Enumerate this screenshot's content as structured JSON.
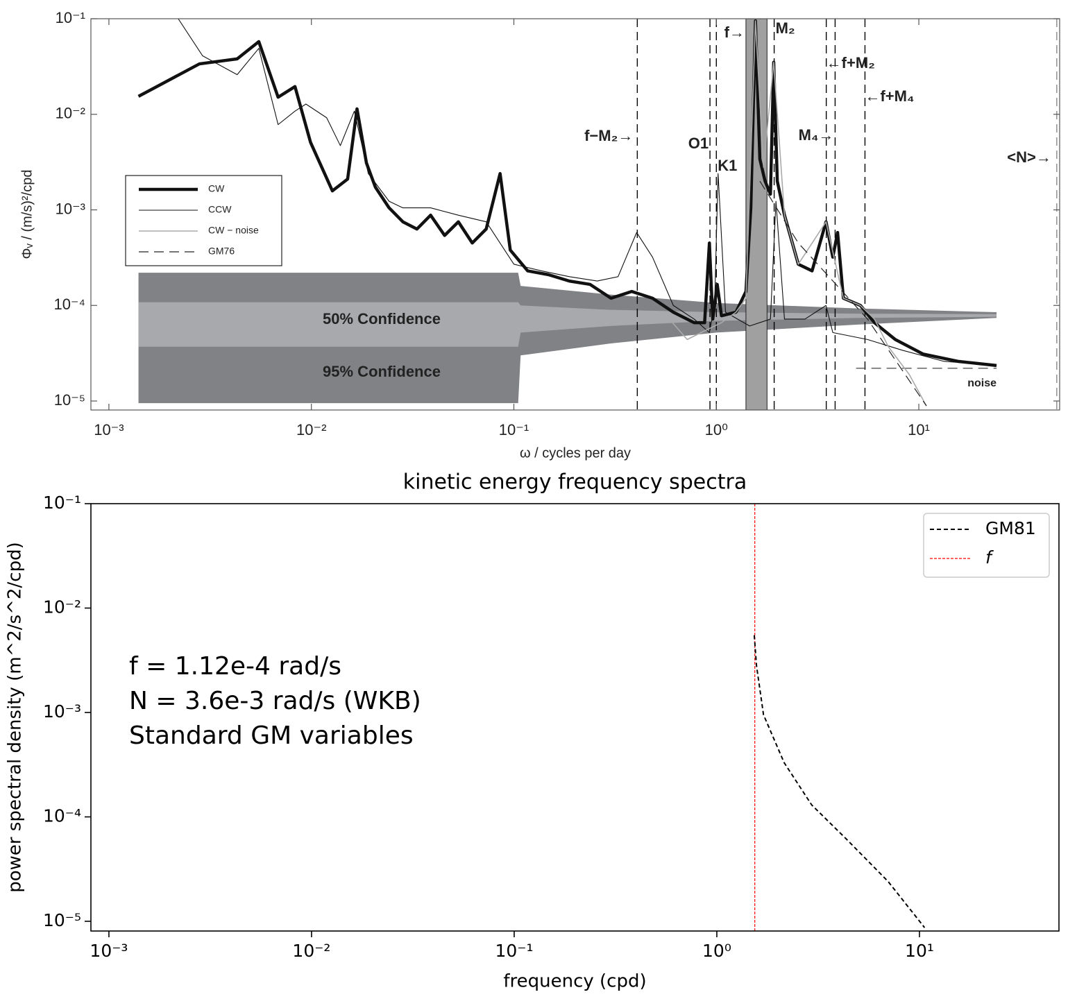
{
  "chart_data": [
    {
      "type": "line",
      "log_x": true,
      "log_y": true,
      "xlabel": "ω / cycles per day",
      "ylabel": "Φᵥ / (m/s)²/cpd",
      "xlim": [
        0.000815,
        49.6
      ],
      "ylim": [
        8.05e-06,
        0.1
      ],
      "xticks": [
        {
          "value": 0.001,
          "label": "10⁻³"
        },
        {
          "value": 0.01,
          "label": "10⁻²"
        },
        {
          "value": 0.1,
          "label": "10⁻¹"
        },
        {
          "value": 1,
          "label": "10⁰"
        },
        {
          "value": 10,
          "label": "10¹"
        }
      ],
      "yticks": [
        {
          "value": 1e-05,
          "label": "10⁻⁵"
        },
        {
          "value": 0.0001,
          "label": "10⁻⁴"
        },
        {
          "value": 0.001,
          "label": "10⁻³"
        },
        {
          "value": 0.01,
          "label": "10⁻²"
        },
        {
          "value": 0.1,
          "label": "10⁻¹"
        }
      ],
      "bands": [
        {
          "name": "95% Confidence",
          "color": "#808285",
          "x": [
            0.0014,
            0.105,
            0.108,
            0.3,
            1,
            5,
            24.2
          ],
          "lower": [
            9.5e-06,
            9.5e-06,
            3e-05,
            4e-05,
            5.2e-05,
            6.3e-05,
            7.4e-05
          ],
          "upper": [
            0.00022,
            0.00022,
            0.00016,
            0.00013,
            0.000106,
            9.3e-05,
            8.5e-05
          ]
        },
        {
          "name": "50% Confidence",
          "color": "#a7a9ac",
          "x": [
            0.0014,
            0.105,
            0.108,
            0.3,
            1,
            5,
            24.2
          ],
          "lower": [
            3.7e-05,
            3.7e-05,
            5.2e-05,
            6.1e-05,
            6.9e-05,
            7.4e-05,
            7.6e-05
          ],
          "upper": [
            0.000108,
            0.000108,
            0.0001,
            9e-05,
            8.5e-05,
            8.2e-05,
            8.1e-05
          ]
        }
      ],
      "shaded": {
        "label": "f→",
        "xlim": [
          1.4,
          1.78
        ],
        "color": "#a0a0a0"
      },
      "vlines": [
        {
          "label": "f−M₂→",
          "x": 0.407,
          "color": "#000000"
        },
        {
          "label": "O1",
          "x": 0.93,
          "color": "#000000"
        },
        {
          "label": "K1",
          "x": 1.0,
          "color": "#000000"
        },
        {
          "label": "M₂",
          "x": 1.93,
          "color": "#000000"
        },
        {
          "label": "←f+M₂",
          "x": 3.49,
          "color": "#000000"
        },
        {
          "label": "M₄→",
          "x": 3.86,
          "color": "#000000"
        },
        {
          "label": "←f+M₄",
          "x": 5.42,
          "color": "#000000"
        },
        {
          "label": "<N>→",
          "x": 48,
          "color": "#888888"
        }
      ],
      "noise": {
        "label": "noise",
        "x": [
          4.9,
          24.2
        ],
        "value": 2.2e-05,
        "color": "#555555"
      },
      "series": [
        {
          "name": "CW",
          "color": "#111111",
          "line_width": 4.5,
          "dash": "none",
          "x": [
            0.0014,
            0.0028,
            0.0043,
            0.0055,
            0.00685,
            0.0083,
            0.0099,
            0.0127,
            0.0151,
            0.0168,
            0.0187,
            0.0207,
            0.0242,
            0.0283,
            0.0332,
            0.0388,
            0.0455,
            0.0532,
            0.0623,
            0.073,
            0.0855,
            0.096,
            0.117,
            0.148,
            0.188,
            0.238,
            0.302,
            0.382,
            0.484,
            0.613,
            0.777,
            0.875,
            0.924,
            0.96,
            1.01,
            1.06,
            1.25,
            1.4,
            1.48,
            1.56,
            1.64,
            1.74,
            1.85,
            1.92,
            2.0,
            2.17,
            2.54,
            2.97,
            3.48,
            3.76,
            3.97,
            4.24,
            5.15,
            6.04,
            7.65,
            10.5,
            15.6,
            24.2
          ],
          "values": [
            0.0154,
            0.0337,
            0.038,
            0.0576,
            0.0151,
            0.0195,
            0.0051,
            0.00158,
            0.0021,
            0.0114,
            0.0031,
            0.00173,
            0.00105,
            0.00075,
            0.00063,
            0.00088,
            0.00054,
            0.00075,
            0.00045,
            0.00063,
            0.0024,
            0.00038,
            0.00023,
            0.00021,
            0.00018,
            0.000166,
            0.000119,
            0.00014,
            0.000119,
            8.5e-05,
            6.6e-05,
            6.6e-05,
            0.00045,
            7.2e-05,
            0.000166,
            7.8e-05,
            8.5e-05,
            0.00014,
            0.00105,
            0.095,
            0.0034,
            0.002,
            0.00146,
            0.035,
            0.002,
            0.00088,
            0.00027,
            0.00023,
            0.00075,
            0.00032,
            0.00058,
            0.000119,
            0.0001,
            6.6e-05,
            4.4e-05,
            3.1e-05,
            2.6e-05,
            2.35e-05
          ]
        },
        {
          "name": "CCW",
          "color": "#111111",
          "line_width": 1.1,
          "dash": "none",
          "x": [
            0.0022,
            0.0029,
            0.0043,
            0.0055,
            0.00685,
            0.0083,
            0.0094,
            0.0119,
            0.0139,
            0.0163,
            0.0191,
            0.0242,
            0.0283,
            0.0388,
            0.0532,
            0.073,
            0.1,
            0.137,
            0.188,
            0.258,
            0.327,
            0.404,
            0.484,
            0.613,
            0.777,
            0.924,
            0.98,
            1.02,
            1.11,
            1.46,
            1.85,
            1.97,
            2.17,
            2.74,
            3.48,
            3.76,
            5.58,
            8.28,
            13.3,
            24.2
          ],
          "values": [
            0.1,
            0.041,
            0.026,
            0.049,
            0.0078,
            0.0108,
            0.0128,
            0.0092,
            0.0047,
            0.0108,
            0.0024,
            0.00123,
            0.00105,
            0.00105,
            0.00088,
            0.00075,
            0.00027,
            0.00023,
            0.0002,
            0.00018,
            0.0002,
            0.00058,
            0.00032,
            0.0001,
            7.2e-05,
            5.2e-05,
            0.0001,
            0.0024,
            8.5e-05,
            6.1e-05,
            7.2e-05,
            0.00123,
            7.2e-05,
            7.2e-05,
            0.0001,
            5.2e-05,
            4.4e-05,
            3.4e-05,
            2.6e-05,
            2.35e-05
          ]
        },
        {
          "name": "CW − noise",
          "color": "#aaaaaa",
          "line_width": 1.6,
          "dash": "none",
          "x": [
            0.567,
            0.718,
            0.84,
            1.06,
            1.25,
            1.4,
            1.56,
            1.71,
            1.92,
            2.17,
            2.54,
            3.48,
            4.24,
            5.15,
            6.04,
            7.07,
            8.96,
            10.9
          ],
          "values": [
            7.8e-05,
            4.4e-05,
            5.2e-05,
            6.6e-05,
            8.5e-05,
            0.000119,
            0.095,
            0.0028,
            0.035,
            0.00088,
            0.00027,
            0.00075,
            0.000119,
            0.0001,
            7.2e-05,
            3.7e-05,
            1.9e-05,
            8.9e-06
          ]
        },
        {
          "name": "GM76",
          "color": "#222222",
          "line_width": 1.2,
          "dash": "14 8",
          "x": [
            1.64,
            2.54,
            5.58,
            10.9
          ],
          "values": [
            0.002,
            0.00045,
            7.2e-05,
            8.9e-06
          ]
        }
      ]
    },
    {
      "type": "line",
      "log_x": true,
      "log_y": true,
      "title": "kinetic energy frequency spectra",
      "xlabel": "frequency (cpd)",
      "ylabel": "power spectral density (m^2/s^2/cpd)",
      "xlim": [
        0.000815,
        48.8
      ],
      "ylim": [
        8.07e-06,
        0.1
      ],
      "xticks": [
        {
          "value": 0.001,
          "label": "10⁻³"
        },
        {
          "value": 0.01,
          "label": "10⁻²"
        },
        {
          "value": 0.1,
          "label": "10⁻¹"
        },
        {
          "value": 1,
          "label": "10⁰"
        },
        {
          "value": 10,
          "label": "10¹"
        }
      ],
      "yticks": [
        {
          "value": 1e-05,
          "label": "10⁻⁵"
        },
        {
          "value": 0.0001,
          "label": "10⁻⁴"
        },
        {
          "value": 0.001,
          "label": "10⁻³"
        },
        {
          "value": 0.01,
          "label": "10⁻²"
        },
        {
          "value": 0.1,
          "label": "10⁻¹"
        }
      ],
      "annotation": [
        "f = 1.12e-4 rad/s",
        "N = 3.6e-3 rad/s (WKB)",
        "Standard GM variables"
      ],
      "legend": "upper right",
      "series": [
        {
          "name": "GM81",
          "color": "#000000",
          "line_width": 2,
          "dash": "6 4",
          "x": [
            1.53,
            1.57,
            1.7,
            2.15,
            2.94,
            4.37,
            7.01,
            10.6
          ],
          "values": [
            0.0055,
            0.0028,
            0.00095,
            0.00033,
            0.00013,
            6.1e-05,
            2.4e-05,
            8.7e-06
          ]
        }
      ],
      "vlines": [
        {
          "name": "f",
          "x": 1.54,
          "color": "#ff0000"
        }
      ]
    }
  ]
}
